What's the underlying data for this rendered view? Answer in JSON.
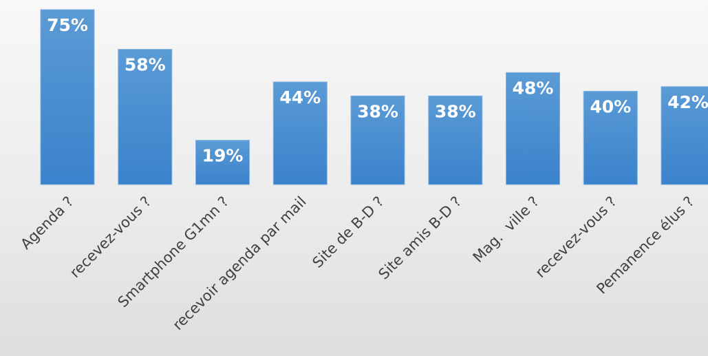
{
  "chart_data": {
    "type": "bar",
    "categories": [
      "Agenda ?",
      "recevez-vous ?",
      "Smartphone G1mn ?",
      "recevoir agenda par mail",
      "Site de B-D ?",
      "Site amis B-D ?",
      "Mag.  ville ?",
      "recevez-vous ?",
      "Pemanence élus ?"
    ],
    "values": [
      75,
      58,
      19,
      44,
      38,
      38,
      48,
      40,
      42
    ],
    "value_labels": [
      "75%",
      "58%",
      "19%",
      "44%",
      "38%",
      "38%",
      "48%",
      "40%",
      "42%"
    ],
    "ylim": [
      0,
      75
    ],
    "grid": false,
    "legend": "none",
    "bar_color_top": "#5b9bd5",
    "bar_color_bottom": "#3a82cc",
    "label_color": "#ffffff",
    "tick_color": "#404040"
  }
}
